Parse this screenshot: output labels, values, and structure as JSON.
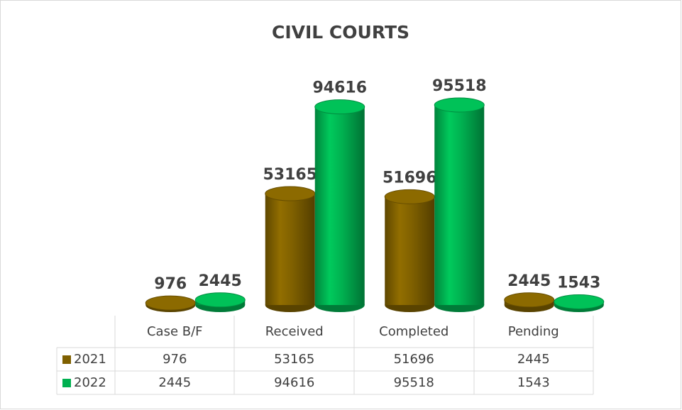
{
  "chart_data": {
    "type": "bar",
    "title": "CIVIL COURTS",
    "categories": [
      "Case B/F",
      "Received",
      "Completed",
      "Pending"
    ],
    "series": [
      {
        "name": "2021",
        "color": "#7f6000",
        "values": [
          976,
          53165,
          51696,
          2445
        ]
      },
      {
        "name": "2022",
        "color": "#00b050",
        "values": [
          2445,
          94616,
          95518,
          1543
        ]
      }
    ]
  }
}
